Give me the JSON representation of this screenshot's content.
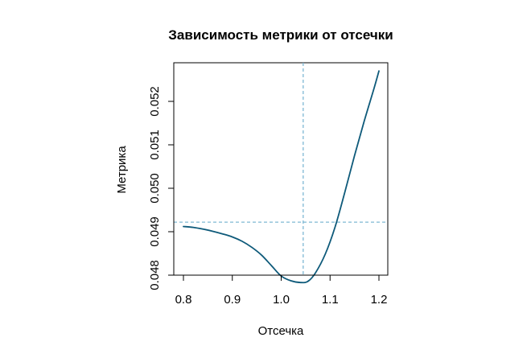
{
  "chart_data": {
    "type": "line",
    "title": "Зависимость метрики от отсечки",
    "xlabel": "Отсечка",
    "ylabel": "Метрика",
    "xlim": [
      0.8,
      1.2
    ],
    "ylim": [
      0.048,
      0.0526
    ],
    "xticks": [
      0.8,
      0.9,
      1.0,
      1.1,
      1.2
    ],
    "xtick_labels": [
      "0.8",
      "0.9",
      "1.0",
      "1.1",
      "1.2"
    ],
    "yticks": [
      0.048,
      0.049,
      0.05,
      0.051,
      0.052
    ],
    "ytick_labels": [
      "0.048",
      "0.049",
      "0.050",
      "0.051",
      "0.052"
    ],
    "grid": false,
    "series": [
      {
        "color": "#0e5a7a",
        "x": [
          0.8,
          0.82,
          0.84,
          0.86,
          0.88,
          0.9,
          0.92,
          0.94,
          0.96,
          0.98,
          1.0,
          1.02,
          1.04,
          1.055,
          1.07,
          1.09,
          1.11,
          1.13,
          1.15,
          1.17,
          1.19,
          1.2
        ],
        "y": [
          0.04912,
          0.0491,
          0.04906,
          0.04901,
          0.04895,
          0.04888,
          0.04878,
          0.04864,
          0.04846,
          0.04822,
          0.04798,
          0.04787,
          0.04783,
          0.04786,
          0.04805,
          0.04848,
          0.0491,
          0.0499,
          0.05075,
          0.05155,
          0.0523,
          0.0527
        ]
      }
    ],
    "reference_lines": {
      "color": "#7fb8d4",
      "vertical_x": 1.045,
      "horizontal_y": 0.04922
    }
  }
}
